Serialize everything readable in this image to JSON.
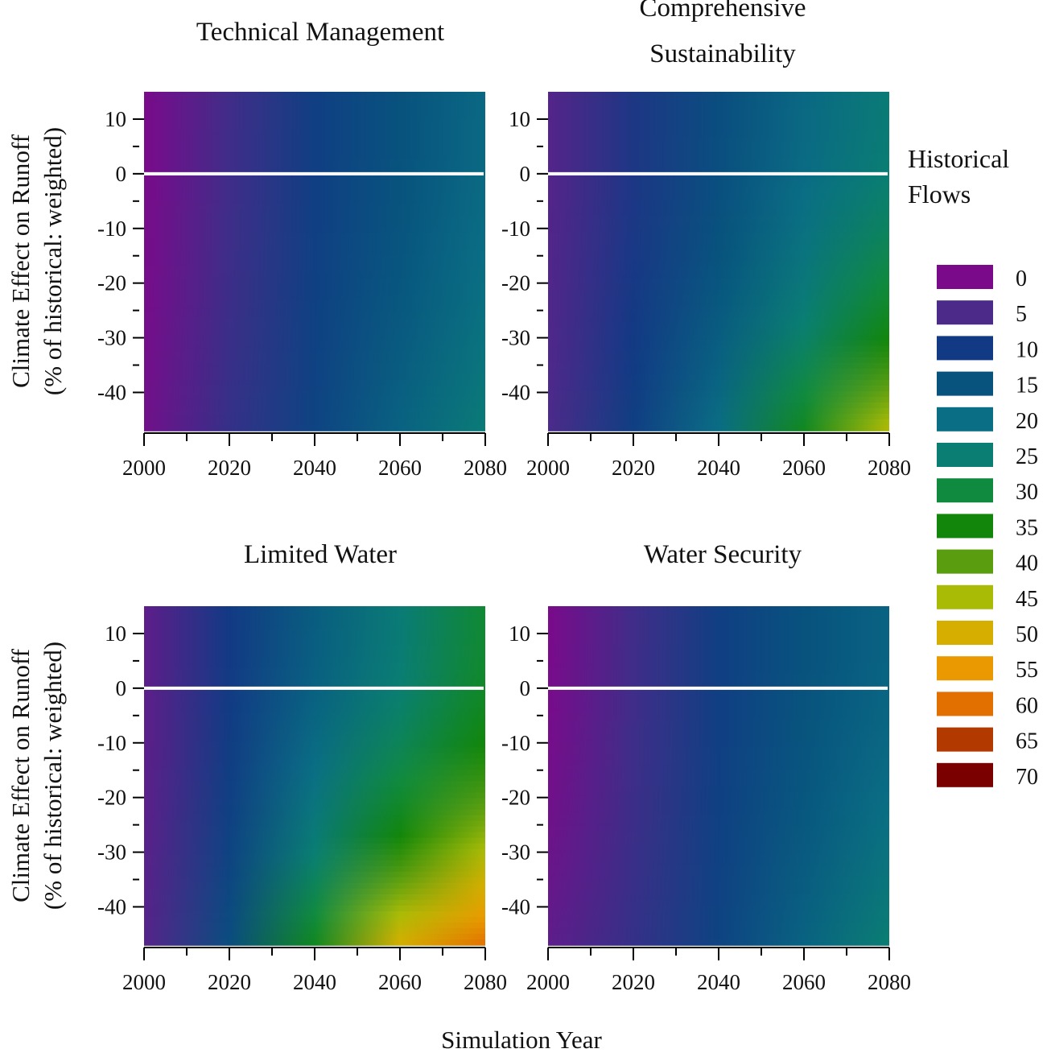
{
  "chart_data": {
    "type": "heatmap",
    "xlabel": "Simulation Year",
    "ylabel_line1": "Climate Effect on Runoff",
    "ylabel_line2": "(% of historical: weighted)",
    "x_ticks": [
      "2000",
      "2020",
      "2040",
      "2060",
      "2080"
    ],
    "y_ticks": [
      "10",
      "0",
      "-10",
      "-20",
      "-30",
      "-40"
    ],
    "xlim": [
      2000,
      2080
    ],
    "ylim": [
      -47,
      15
    ],
    "reference_line": {
      "y": 0,
      "color": "#ffffff",
      "meaning": "Historical Flows"
    },
    "legend": {
      "title_line1": "Historical",
      "title_line2": "Flows",
      "levels": [
        {
          "value": 0,
          "label": "0",
          "color": "#7a0a8a"
        },
        {
          "value": 5,
          "label": "5",
          "color": "#4b2a8a"
        },
        {
          "value": 10,
          "label": "10",
          "color": "#123a84"
        },
        {
          "value": 15,
          "label": "15",
          "color": "#08527e"
        },
        {
          "value": 20,
          "label": "20",
          "color": "#0a6e84"
        },
        {
          "value": 25,
          "label": "25",
          "color": "#0a7e72"
        },
        {
          "value": 30,
          "label": "30",
          "color": "#108a3e"
        },
        {
          "value": 35,
          "label": "35",
          "color": "#12860a"
        },
        {
          "value": 40,
          "label": "40",
          "color": "#5a9e10"
        },
        {
          "value": 45,
          "label": "45",
          "color": "#aabb06"
        },
        {
          "value": 50,
          "label": "50",
          "color": "#d6ae00"
        },
        {
          "value": 55,
          "label": "55",
          "color": "#ea9a00"
        },
        {
          "value": 60,
          "label": "60",
          "color": "#e27000"
        },
        {
          "value": 65,
          "label": "65",
          "color": "#b23a00"
        },
        {
          "value": 70,
          "label": "70",
          "color": "#7a0000"
        }
      ]
    },
    "panels": [
      {
        "title_lines": [
          "Technical Management"
        ],
        "field": {
          "years": [
            2000,
            2020,
            2040,
            2060,
            2080
          ],
          "runoff": [
            15,
            -47
          ],
          "values_at_top": [
            0,
            6,
            11,
            15,
            19
          ],
          "values_at_bottom": [
            1,
            7,
            12,
            18,
            24
          ]
        }
      },
      {
        "title_lines": [
          "Comprehensive",
          "Sustainability"
        ],
        "field": {
          "years": [
            2000,
            2020,
            2040,
            2060,
            2080
          ],
          "runoff": [
            15,
            -47
          ],
          "values_at_top": [
            4,
            9,
            14,
            19,
            24
          ],
          "values_at_bottom": [
            5,
            11,
            20,
            33,
            46
          ]
        }
      },
      {
        "title_lines": [
          "Limited Water"
        ],
        "field": {
          "years": [
            2000,
            2020,
            2040,
            2060,
            2080
          ],
          "runoff": [
            15,
            -47
          ],
          "values_at_top": [
            3,
            10,
            17,
            24,
            31
          ],
          "values_at_bottom": [
            4,
            14,
            33,
            50,
            60
          ]
        }
      },
      {
        "title_lines": [
          "Water Security"
        ],
        "field": {
          "years": [
            2000,
            2020,
            2040,
            2060,
            2080
          ],
          "runoff": [
            15,
            -47
          ],
          "values_at_top": [
            0,
            6,
            11,
            15,
            18
          ],
          "values_at_bottom": [
            3,
            7,
            12,
            18,
            25
          ]
        }
      }
    ]
  }
}
